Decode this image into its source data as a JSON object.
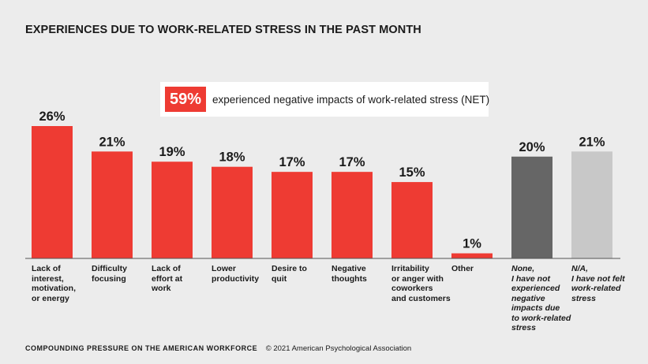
{
  "chart_data": {
    "type": "bar",
    "title": "EXPERIENCES DUE TO WORK-RELATED STRESS IN THE PAST MONTH",
    "ylim": [
      0,
      26
    ],
    "categories": [
      "Lack of\ninterest,\nmotivation,\nor energy",
      "Difficulty\nfocusing",
      "Lack of\neffort at\nwork",
      "Lower\nproductivity",
      "Desire to\nquit",
      "Negative\nthoughts",
      "Irritability\nor anger with\ncoworkers\nand customers",
      "Other",
      "None,\nI have not\nexperienced\nnegative\nimpacts due\nto work-related\nstress",
      "N/A,\nI have not felt\nwork-related\nstress"
    ],
    "values": [
      26,
      21,
      19,
      18,
      17,
      17,
      15,
      1,
      20,
      21
    ],
    "value_labels": [
      "26%",
      "21%",
      "19%",
      "18%",
      "17%",
      "17%",
      "15%",
      "1%",
      "20%",
      "21%"
    ],
    "colors": [
      "#ee3b33",
      "#ee3b33",
      "#ee3b33",
      "#ee3b33",
      "#ee3b33",
      "#ee3b33",
      "#ee3b33",
      "#ee3b33",
      "#666666",
      "#c8c8c8"
    ],
    "italic_labels": [
      false,
      false,
      false,
      false,
      false,
      false,
      false,
      false,
      true,
      true
    ]
  },
  "net_callout": {
    "value": "59%",
    "text": "experienced negative impacts of work-related stress (NET)",
    "color": "#ee3b33"
  },
  "footer": {
    "org": "COMPOUNDING PRESSURE ON THE AMERICAN WORKFORCE",
    "copyright": "© 2021 American Psychological Association"
  }
}
